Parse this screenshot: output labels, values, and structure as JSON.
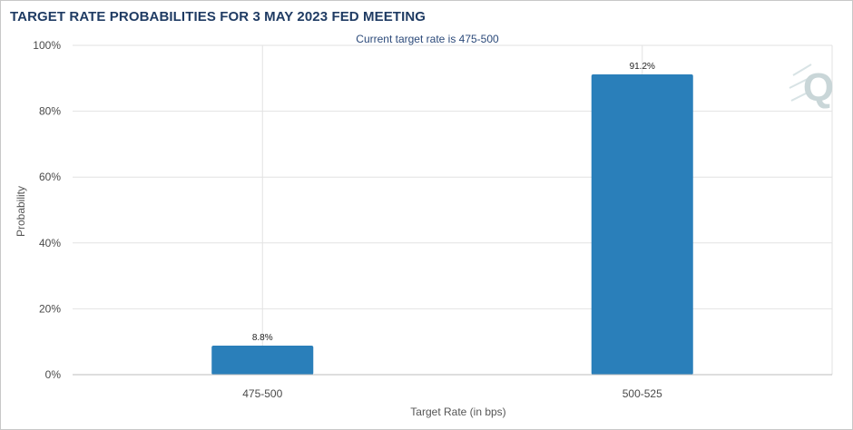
{
  "chart_data": {
    "type": "bar",
    "title": "TARGET RATE PROBABILITIES FOR 3 MAY 2023 FED MEETING",
    "subtitle": "Current target rate is 475-500",
    "xlabel": "Target Rate (in bps)",
    "ylabel": "Probability",
    "categories": [
      "475-500",
      "500-525"
    ],
    "values": [
      8.8,
      91.2
    ],
    "data_labels": [
      "8.8%",
      "91.2%"
    ],
    "ylim": [
      0,
      100
    ],
    "yticks": [
      0,
      20,
      40,
      60,
      80,
      100
    ],
    "ytick_labels": [
      "0%",
      "20%",
      "40%",
      "60%",
      "80%",
      "100%"
    ],
    "grid": true,
    "bar_color": "#2a7fba",
    "legend": "none"
  },
  "colors": {
    "title": "#1f3b63",
    "grid": "#e2e2e2",
    "axis": "#bdbdbd",
    "logo": "#c9d6d8"
  },
  "logo": {
    "icon": "q-watermark-logo",
    "text": "Q"
  }
}
